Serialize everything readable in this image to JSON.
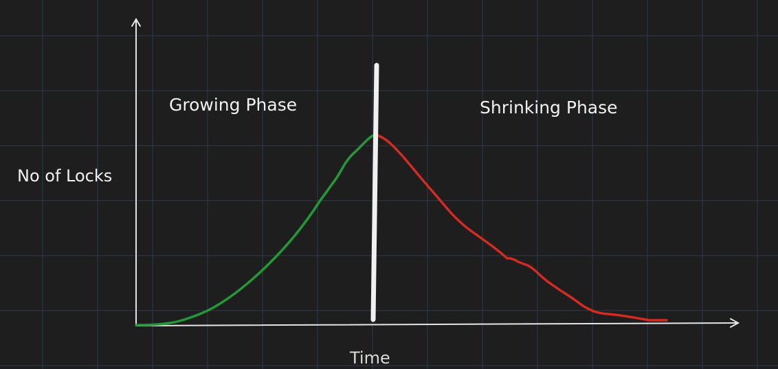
{
  "axes": {
    "ylabel": "No of Locks",
    "xlabel": "Time"
  },
  "phases": {
    "growing": "Growing Phase",
    "shrinking": "Shrinking Phase"
  },
  "colors": {
    "background": "#1e1e1f",
    "grid": "#2f3a4a",
    "axis": "#e6e6e6",
    "growing_curve": "#1f9a36",
    "shrinking_curve": "#d42a20",
    "divider": "#f0f0f0"
  }
}
